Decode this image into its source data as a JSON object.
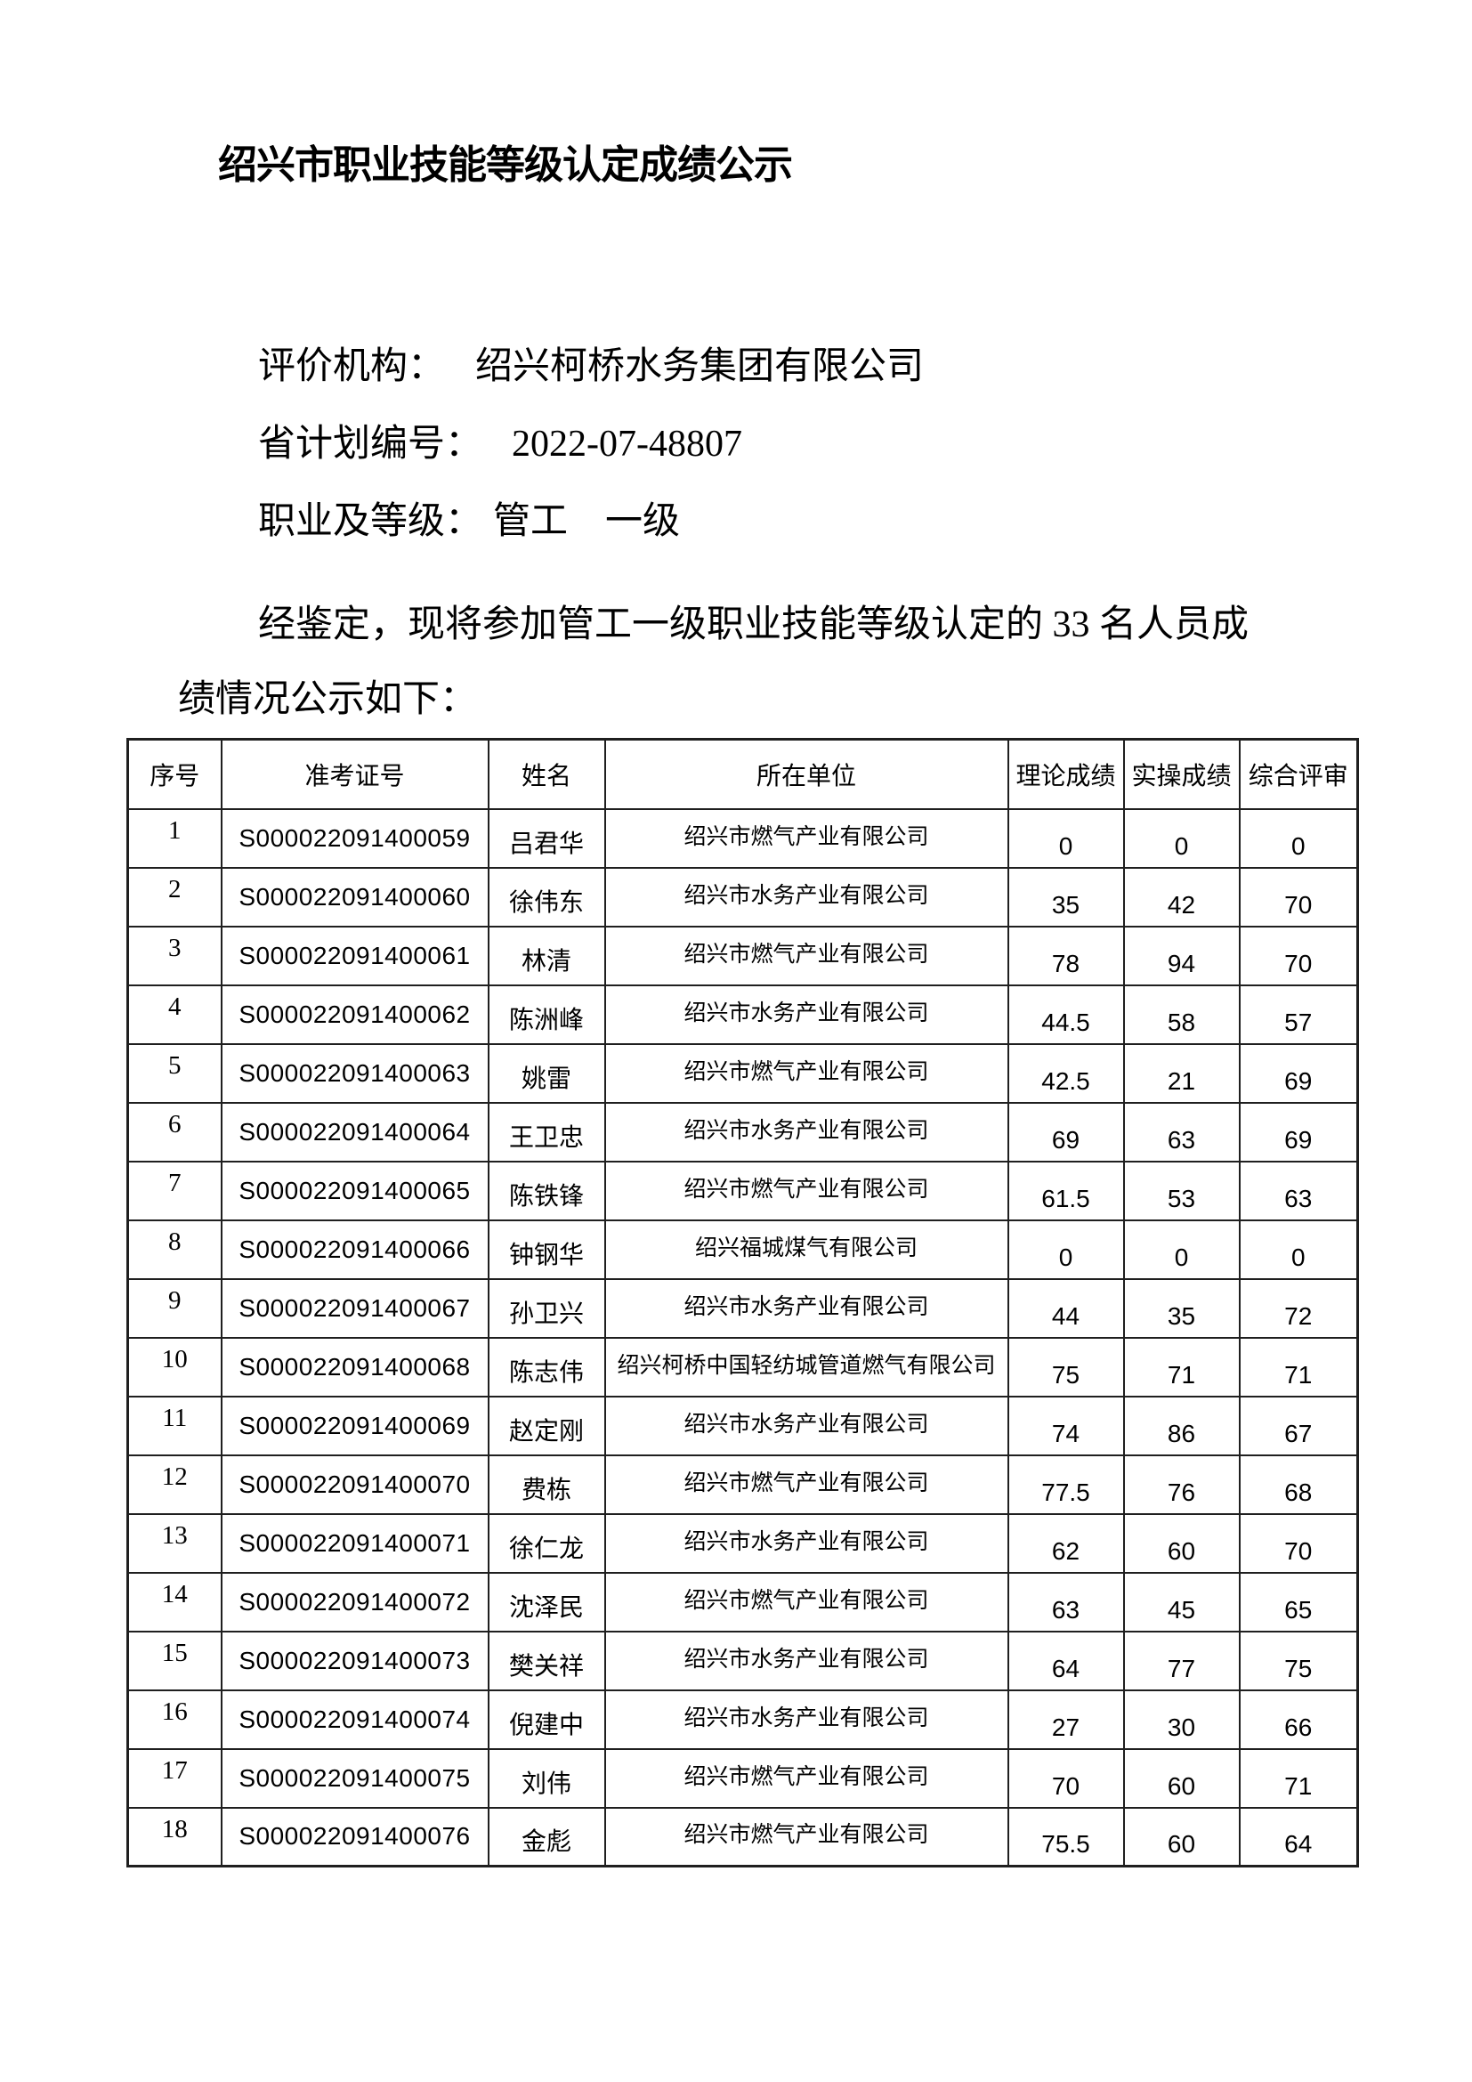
{
  "page": {
    "title": "绍兴市职业技能等级认定成绩公示",
    "meta": [
      {
        "label": "评价机构：",
        "value": "绍兴柯桥水务集团有限公司"
      },
      {
        "label": "省计划编号：",
        "value": "2022-07-48807"
      },
      {
        "label": "职业及等级：",
        "value": "管工　一级"
      }
    ],
    "paragraph_line1": "经鉴定，现将参加管工一级职业技能等级认定的 33 名人员成",
    "paragraph_line2": "绩情况公示如下：",
    "candidate_count": "33"
  },
  "table": {
    "headers": [
      "序号",
      "准考证号",
      "姓名",
      "所在单位",
      "理论成绩",
      "实操成绩",
      "综合评审"
    ],
    "rows": [
      [
        "1",
        "S000022091400059",
        "吕君华",
        "绍兴市燃气产业有限公司",
        "0",
        "0",
        "0"
      ],
      [
        "2",
        "S000022091400060",
        "徐伟东",
        "绍兴市水务产业有限公司",
        "35",
        "42",
        "70"
      ],
      [
        "3",
        "S000022091400061",
        "林清",
        "绍兴市燃气产业有限公司",
        "78",
        "94",
        "70"
      ],
      [
        "4",
        "S000022091400062",
        "陈洲峰",
        "绍兴市水务产业有限公司",
        "44.5",
        "58",
        "57"
      ],
      [
        "5",
        "S000022091400063",
        "姚雷",
        "绍兴市燃气产业有限公司",
        "42.5",
        "21",
        "69"
      ],
      [
        "6",
        "S000022091400064",
        "王卫忠",
        "绍兴市水务产业有限公司",
        "69",
        "63",
        "69"
      ],
      [
        "7",
        "S000022091400065",
        "陈铁锋",
        "绍兴市燃气产业有限公司",
        "61.5",
        "53",
        "63"
      ],
      [
        "8",
        "S000022091400066",
        "钟钢华",
        "绍兴福城煤气有限公司",
        "0",
        "0",
        "0"
      ],
      [
        "9",
        "S000022091400067",
        "孙卫兴",
        "绍兴市水务产业有限公司",
        "44",
        "35",
        "72"
      ],
      [
        "10",
        "S000022091400068",
        "陈志伟",
        "绍兴柯桥中国轻纺城管道燃气有限公司",
        "75",
        "71",
        "71"
      ],
      [
        "11",
        "S000022091400069",
        "赵定刚",
        "绍兴市水务产业有限公司",
        "74",
        "86",
        "67"
      ],
      [
        "12",
        "S000022091400070",
        "费栋",
        "绍兴市燃气产业有限公司",
        "77.5",
        "76",
        "68"
      ],
      [
        "13",
        "S000022091400071",
        "徐仁龙",
        "绍兴市水务产业有限公司",
        "62",
        "60",
        "70"
      ],
      [
        "14",
        "S000022091400072",
        "沈泽民",
        "绍兴市燃气产业有限公司",
        "63",
        "45",
        "65"
      ],
      [
        "15",
        "S000022091400073",
        "樊关祥",
        "绍兴市水务产业有限公司",
        "64",
        "77",
        "75"
      ],
      [
        "16",
        "S000022091400074",
        "倪建中",
        "绍兴市水务产业有限公司",
        "27",
        "30",
        "66"
      ],
      [
        "17",
        "S000022091400075",
        "刘伟",
        "绍兴市燃气产业有限公司",
        "70",
        "60",
        "71"
      ],
      [
        "18",
        "S000022091400076",
        "金彪",
        "绍兴市燃气产业有限公司",
        "75.5",
        "60",
        "64"
      ]
    ]
  },
  "colors": {
    "background": "#ffffff",
    "text": "#000000",
    "border": "#1f1f1f"
  }
}
